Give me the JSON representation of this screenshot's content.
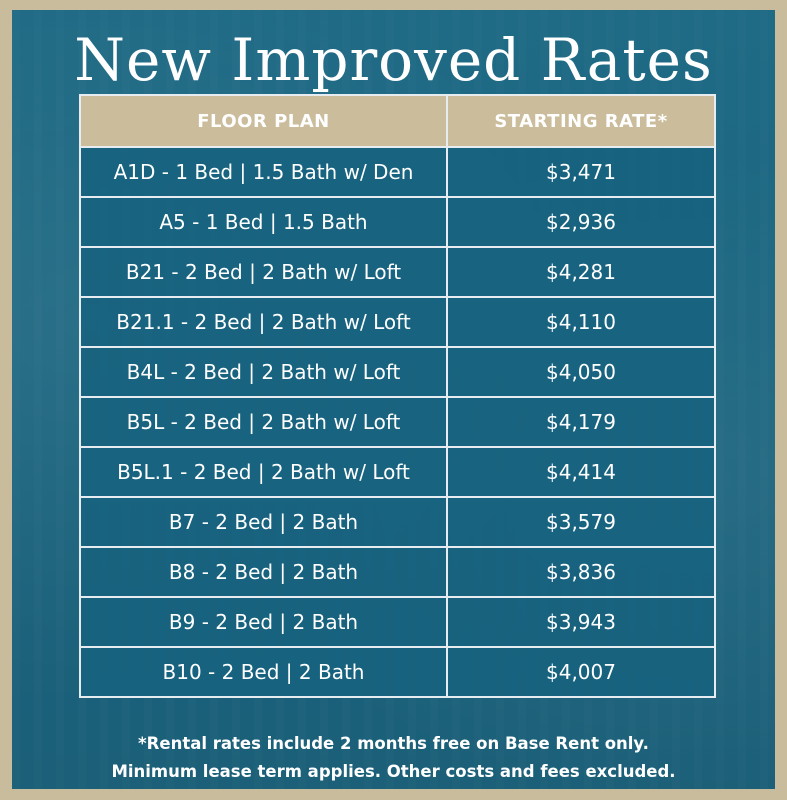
{
  "title": "New Improved Rates",
  "colors": {
    "background": "#1c6680",
    "header_bg": "#cbbd9c",
    "frame": "#c9bc9c",
    "text": "#ffffff"
  },
  "table": {
    "headers": {
      "floor_plan": "FLOOR PLAN",
      "starting_rate": "STARTING RATE*"
    },
    "rows": [
      {
        "plan": "A1D - 1 Bed | 1.5 Bath w/ Den",
        "rate": "$3,471"
      },
      {
        "plan": "A5 - 1 Bed | 1.5 Bath",
        "rate": "$2,936"
      },
      {
        "plan": "B21 - 2 Bed | 2 Bath w/ Loft",
        "rate": "$4,281"
      },
      {
        "plan": "B21.1 - 2 Bed | 2 Bath w/ Loft",
        "rate": "$4,110"
      },
      {
        "plan": "B4L - 2 Bed | 2 Bath w/ Loft",
        "rate": "$4,050"
      },
      {
        "plan": "B5L - 2 Bed | 2 Bath w/ Loft",
        "rate": "$4,179"
      },
      {
        "plan": "B5L.1 - 2 Bed | 2 Bath w/ Loft",
        "rate": "$4,414"
      },
      {
        "plan": "B7 - 2 Bed | 2 Bath",
        "rate": "$3,579"
      },
      {
        "plan": "B8 - 2 Bed | 2 Bath",
        "rate": "$3,836"
      },
      {
        "plan": "B9 - 2 Bed | 2 Bath",
        "rate": "$3,943"
      },
      {
        "plan": "B10 - 2 Bed | 2 Bath",
        "rate": "$4,007"
      }
    ]
  },
  "footnote": {
    "line1": "*Rental rates include 2 months free on Base Rent only.",
    "line2": "Minimum lease term applies. Other costs and fees excluded."
  }
}
